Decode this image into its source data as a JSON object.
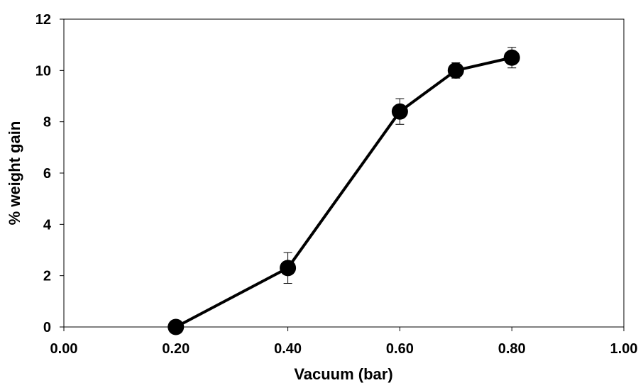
{
  "chart_data": {
    "type": "line",
    "title": "",
    "xlabel": "Vacuum (bar)",
    "ylabel": "% weight gain",
    "xlim": [
      0.0,
      1.0
    ],
    "ylim": [
      0,
      12
    ],
    "x_ticks": [
      0.0,
      0.2,
      0.4,
      0.6,
      0.8,
      1.0
    ],
    "x_tick_labels": [
      "0.00",
      "0.20",
      "0.40",
      "0.60",
      "0.80",
      "1.00"
    ],
    "y_ticks": [
      0,
      2,
      4,
      6,
      8,
      10,
      12
    ],
    "y_tick_labels": [
      "0",
      "2",
      "4",
      "6",
      "8",
      "10",
      "12"
    ],
    "grid": false,
    "legend": "none",
    "series": [
      {
        "x": [
          0.2,
          0.4,
          0.6,
          0.7,
          0.8
        ],
        "y": [
          0.0,
          2.3,
          8.4,
          10.0,
          10.5
        ],
        "error": [
          0.0,
          0.6,
          0.5,
          0.3,
          0.4
        ],
        "color": "#000000",
        "marker": "circle"
      }
    ]
  }
}
